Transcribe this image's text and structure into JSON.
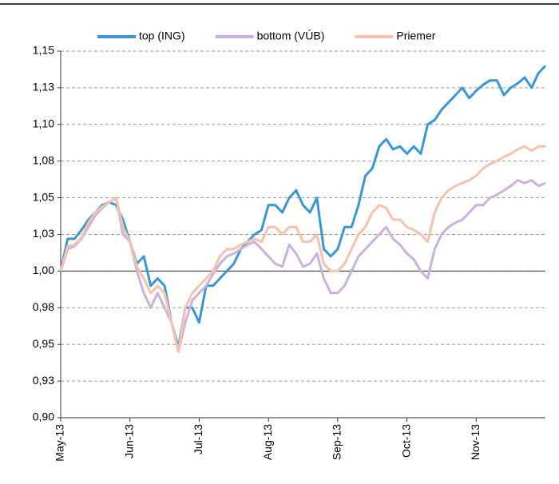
{
  "chart_data": {
    "type": "line",
    "categories": [
      "May-13",
      null,
      null,
      null,
      null,
      null,
      null,
      null,
      null,
      null,
      "Jun-13",
      null,
      null,
      null,
      null,
      null,
      null,
      null,
      null,
      null,
      "Jul-13",
      null,
      null,
      null,
      null,
      null,
      null,
      null,
      null,
      null,
      "Aug-13",
      null,
      null,
      null,
      null,
      null,
      null,
      null,
      null,
      null,
      "Sep-13",
      null,
      null,
      null,
      null,
      null,
      null,
      null,
      null,
      null,
      "Oct-13",
      null,
      null,
      null,
      null,
      null,
      null,
      null,
      null,
      null,
      "Nov-13",
      null,
      null,
      null,
      null,
      null,
      null,
      null,
      null,
      null,
      null
    ],
    "series": [
      {
        "name": "top (ING)",
        "color": "#3a97d4",
        "values": [
          1.0,
          1.022,
          1.022,
          1.028,
          1.035,
          1.04,
          1.045,
          1.047,
          1.045,
          1.035,
          1.02,
          1.005,
          1.01,
          0.99,
          0.995,
          0.99,
          0.965,
          0.948,
          0.975,
          0.975,
          0.965,
          0.99,
          0.99,
          0.995,
          1.0,
          1.005,
          1.015,
          1.02,
          1.025,
          1.028,
          1.045,
          1.045,
          1.04,
          1.05,
          1.055,
          1.045,
          1.04,
          1.05,
          1.015,
          1.01,
          1.015,
          1.03,
          1.03,
          1.045,
          1.065,
          1.07,
          1.085,
          1.09,
          1.083,
          1.085,
          1.08,
          1.085,
          1.08,
          1.1,
          1.103,
          1.11,
          1.115,
          1.12,
          1.125,
          1.118,
          1.123,
          1.127,
          1.13,
          1.13,
          1.12,
          1.125,
          1.128,
          1.132,
          1.125,
          1.135,
          1.14
        ]
      },
      {
        "name": "bottom (VÚB)",
        "color": "#c9b3dc",
        "values": [
          1.0,
          1.015,
          1.017,
          1.022,
          1.03,
          1.038,
          1.043,
          1.047,
          1.05,
          1.025,
          1.02,
          1.0,
          0.985,
          0.975,
          0.985,
          0.975,
          0.965,
          0.945,
          0.965,
          0.98,
          0.985,
          0.99,
          0.998,
          1.005,
          1.01,
          1.012,
          1.015,
          1.018,
          1.02,
          1.015,
          1.01,
          1.005,
          1.003,
          1.018,
          1.012,
          1.003,
          1.005,
          1.012,
          0.995,
          0.985,
          0.985,
          0.99,
          1.0,
          1.01,
          1.015,
          1.02,
          1.025,
          1.03,
          1.022,
          1.018,
          1.012,
          1.008,
          1.0,
          0.995,
          1.015,
          1.025,
          1.03,
          1.033,
          1.035,
          1.04,
          1.045,
          1.045,
          1.05,
          1.052,
          1.055,
          1.058,
          1.062,
          1.06,
          1.062,
          1.058,
          1.06
        ]
      },
      {
        "name": "Priemer",
        "color": "#f6c2ad",
        "values": [
          1.0,
          1.017,
          1.018,
          1.023,
          1.033,
          1.04,
          1.044,
          1.047,
          1.05,
          1.03,
          1.02,
          1.003,
          0.995,
          0.985,
          0.99,
          0.985,
          0.965,
          0.945,
          0.975,
          0.985,
          0.99,
          0.995,
          1.0,
          1.01,
          1.015,
          1.015,
          1.018,
          1.02,
          1.022,
          1.02,
          1.03,
          1.03,
          1.025,
          1.03,
          1.03,
          1.02,
          1.02,
          1.025,
          1.005,
          1.0,
          1.0,
          1.005,
          1.015,
          1.025,
          1.03,
          1.04,
          1.045,
          1.043,
          1.035,
          1.035,
          1.03,
          1.028,
          1.025,
          1.02,
          1.04,
          1.05,
          1.055,
          1.058,
          1.06,
          1.062,
          1.065,
          1.07,
          1.073,
          1.075,
          1.078,
          1.08,
          1.083,
          1.085,
          1.082,
          1.085,
          1.085
        ]
      }
    ],
    "ylim": [
      0.9,
      1.15
    ],
    "yticks": [
      {
        "value": 0.9,
        "label": "0,90"
      },
      {
        "value": 0.925,
        "label": "0,93"
      },
      {
        "value": 0.95,
        "label": "0,95"
      },
      {
        "value": 0.975,
        "label": "0,98"
      },
      {
        "value": 1.0,
        "label": "1,00"
      },
      {
        "value": 1.025,
        "label": "1,03"
      },
      {
        "value": 1.05,
        "label": "1,05"
      },
      {
        "value": 1.075,
        "label": "1,08"
      },
      {
        "value": 1.1,
        "label": "1,10"
      },
      {
        "value": 1.125,
        "label": "1,13"
      },
      {
        "value": 1.15,
        "label": "1,15"
      }
    ],
    "grid": true,
    "legend": "top"
  }
}
